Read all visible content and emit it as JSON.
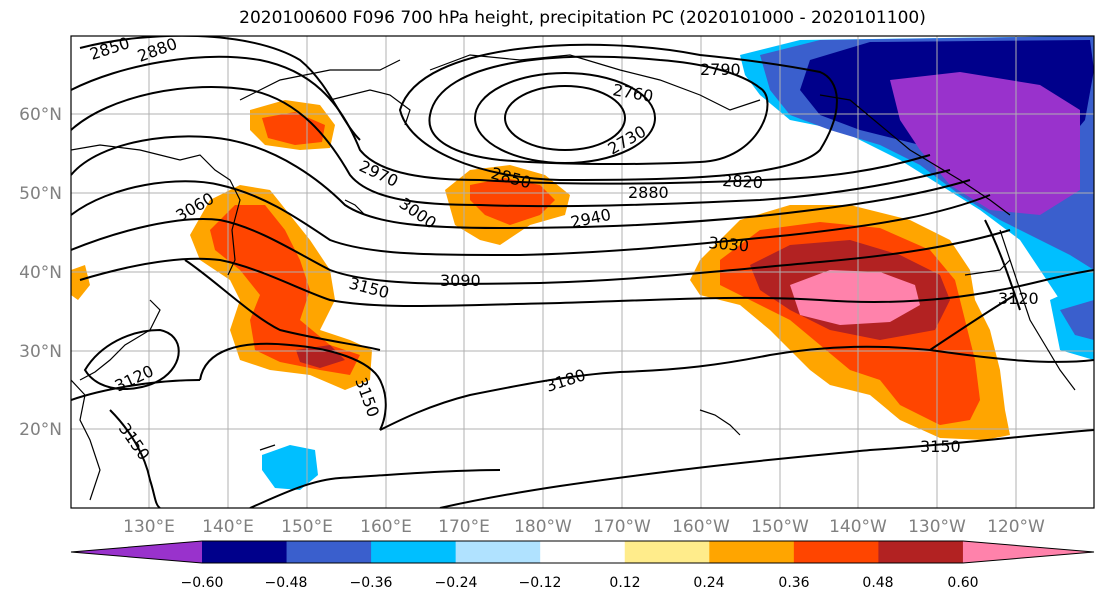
{
  "title": "2020100600 F096 700 hPa height, precipitation PC (2020101000 - 2020101100)",
  "lat_labels": [
    "60°N",
    "50°N",
    "40°N",
    "30°N",
    "20°N"
  ],
  "lon_labels": [
    "130°E",
    "140°E",
    "150°E",
    "160°E",
    "170°E",
    "180°W",
    "170°W",
    "160°W",
    "150°W",
    "140°W",
    "130°W",
    "120°W"
  ],
  "contour_labels": [
    "2850",
    "2880",
    "2790",
    "2760",
    "2730",
    "2850",
    "2880",
    "2820",
    "2940",
    "2970",
    "3000",
    "3060",
    "3030",
    "3090",
    "3150",
    "3120",
    "3180",
    "3150",
    "3120",
    "3150",
    "3150"
  ],
  "colorbar": {
    "ticks": [
      "−0.60",
      "−0.48",
      "−0.36",
      "−0.24",
      "−0.12",
      "0.12",
      "0.24",
      "0.36",
      "0.48",
      "0.60"
    ],
    "colors": [
      "#9932cc",
      "#00008b",
      "#3a5fcd",
      "#00bfff",
      "#b0e2ff",
      "#ffffff",
      "#ffec8b",
      "#ffa500",
      "#ff4500",
      "#b22222",
      "#ff82ab"
    ]
  }
}
